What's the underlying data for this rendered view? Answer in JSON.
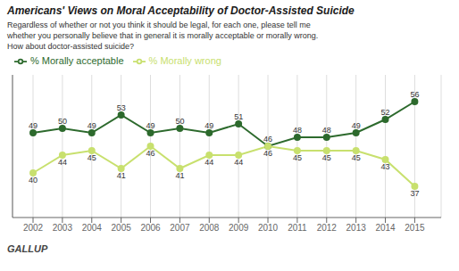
{
  "chart_data": {
    "type": "line",
    "title": "Americans' Views on Moral Acceptability of Doctor-Assisted Suicide",
    "subtitle": [
      "Regardless of whether or not you think it should be legal, for each one, please tell me",
      "whether you personally believe that in general it is morally acceptable or morally wrong.",
      "How about doctor-assisted suicide?"
    ],
    "annotations": [
      "GALLUP"
    ],
    "x": [
      2002,
      2003,
      2004,
      2005,
      2006,
      2007,
      2008,
      2009,
      2010,
      2011,
      2012,
      2013,
      2014,
      2015
    ],
    "series": [
      {
        "name": "% Morally acceptable",
        "color": "#2d6a2d",
        "values": [
          49,
          50,
          49,
          53,
          49,
          50,
          49,
          51,
          46,
          48,
          48,
          49,
          52,
          56
        ]
      },
      {
        "name": "% Morally wrong",
        "color": "#c8e06e",
        "values": [
          40,
          44,
          45,
          41,
          46,
          41,
          44,
          44,
          46,
          45,
          45,
          45,
          43,
          37
        ]
      }
    ],
    "xlim": [
      2001.3,
      2015.9
    ],
    "xticks": [
      2002,
      2003,
      2004,
      2005,
      2006,
      2007,
      2008,
      2009,
      2010,
      2011,
      2012,
      2013,
      2014,
      2015
    ],
    "ylim": [
      30,
      62
    ],
    "grid": true,
    "tick_labels": "x",
    "data_labels": true,
    "marker": "circle",
    "legend": "top"
  }
}
